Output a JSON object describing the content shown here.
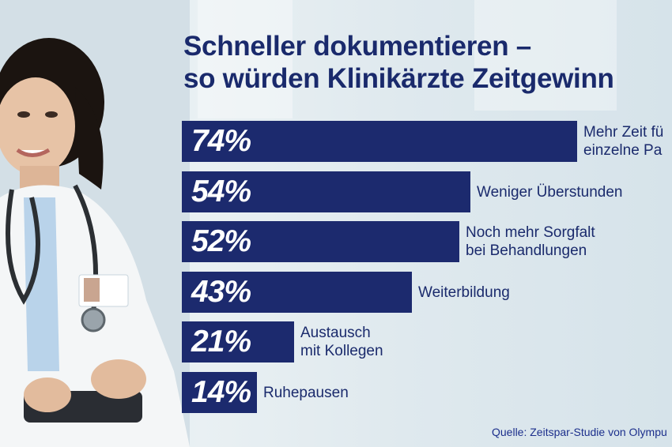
{
  "title_line1": "Schneller dokumentieren –",
  "title_line2": "so würden Klinikärzte Zeitgewinn",
  "source": "Quelle: Zeitspar-Studie von Olympu",
  "colors": {
    "bar": "#1c2a6e",
    "text": "#1a2a6c",
    "background": "#e4edf1"
  },
  "chart_data": {
    "type": "bar",
    "orientation": "horizontal",
    "categories": [
      "Mehr Zeit fü\neinzelne Pa",
      "Weniger Überstunden",
      "Noch mehr Sorgfalt\nbei Behandlungen",
      "Weiterbildung",
      "Austausch\nmit Kollegen",
      "Ruhepausen"
    ],
    "values": [
      74,
      54,
      52,
      43,
      21,
      14
    ],
    "value_labels": [
      "74%",
      "54%",
      "52%",
      "43%",
      "21%",
      "14%"
    ],
    "unit": "%"
  }
}
